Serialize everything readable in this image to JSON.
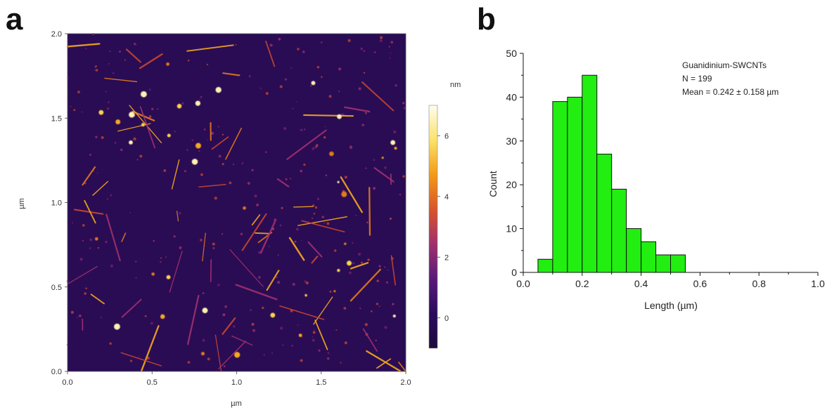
{
  "panels": {
    "a": "a",
    "b": "b"
  },
  "chart_data": [
    {
      "type": "heatmap",
      "xlabel": "µm",
      "ylabel": "µm",
      "xlim": [
        0,
        2
      ],
      "ylim": [
        0,
        2
      ],
      "xticks": [
        "0.0",
        "0.5",
        "1.0",
        "1.5",
        "2.0"
      ],
      "yticks": [
        "0.0",
        "0.5",
        "1.0",
        "1.5",
        "2.0"
      ],
      "colorbar": {
        "label": "nm",
        "range": [
          -1,
          7
        ],
        "ticks": [
          0,
          2,
          4,
          6
        ],
        "colors": [
          "#1a0a3c",
          "#2b0a5e",
          "#5a1a7a",
          "#a0306e",
          "#d8552a",
          "#f39a18",
          "#fbe26a",
          "#fffdf0"
        ]
      },
      "background_color": "#2a0c55"
    },
    {
      "type": "bar",
      "xlabel": "Length (µm)",
      "ylabel": "Count",
      "xlim": [
        0,
        1.0
      ],
      "ylim": [
        0,
        50
      ],
      "xticks": [
        "0.0",
        "0.2",
        "0.4",
        "0.6",
        "0.8",
        "1.0"
      ],
      "yticks": [
        "0",
        "10",
        "20",
        "30",
        "40",
        "50"
      ],
      "bin_width": 0.05,
      "bins": [
        {
          "x0": 0.05,
          "value": 3
        },
        {
          "x0": 0.1,
          "value": 39
        },
        {
          "x0": 0.15,
          "value": 40
        },
        {
          "x0": 0.2,
          "value": 45
        },
        {
          "x0": 0.25,
          "value": 27
        },
        {
          "x0": 0.3,
          "value": 19
        },
        {
          "x0": 0.35,
          "value": 10
        },
        {
          "x0": 0.4,
          "value": 7
        },
        {
          "x0": 0.45,
          "value": 4
        },
        {
          "x0": 0.5,
          "value": 4
        }
      ],
      "bar_color": "#22ee11",
      "annotation": [
        "Guanidinium-SWCNTs",
        "N = 199",
        "Mean = 0.242 ± 0.158 µm"
      ]
    }
  ]
}
